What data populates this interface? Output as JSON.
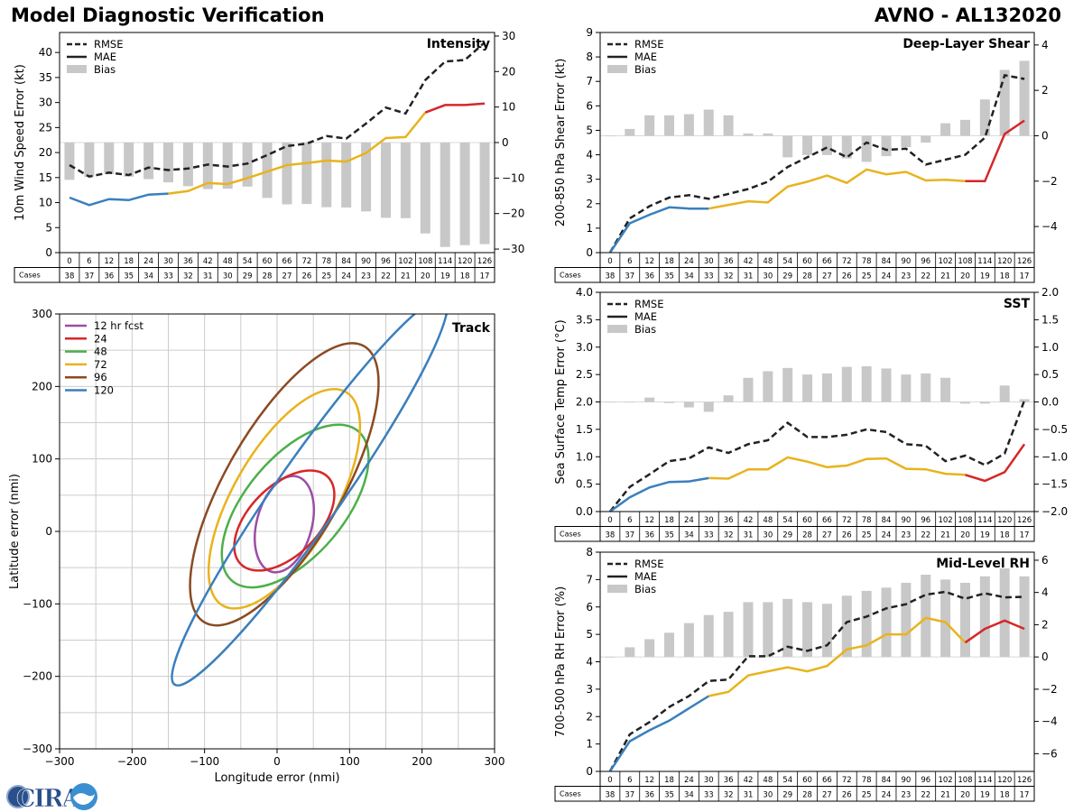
{
  "header": {
    "title": "Model Diagnostic Verification",
    "storm": "AVNO - AL132020"
  },
  "cases_label": "Cases",
  "hours": [
    0,
    6,
    12,
    18,
    24,
    30,
    36,
    42,
    48,
    54,
    60,
    66,
    72,
    78,
    84,
    90,
    96,
    102,
    108,
    114,
    120,
    126
  ],
  "cases": [
    38,
    37,
    36,
    35,
    34,
    33,
    32,
    31,
    30,
    29,
    28,
    27,
    26,
    25,
    24,
    23,
    22,
    21,
    20,
    19,
    18,
    17
  ],
  "legend_labels": {
    "rmse": "RMSE",
    "mae": "MAE",
    "bias": "Bias"
  },
  "colors": {
    "early": "#3a7fbd",
    "mid": "#e8b31d",
    "late": "#d62728",
    "rmse": "#222222",
    "bias": "#c8c8c8",
    "grid": "#cccccc"
  },
  "logo_text": "CIRA",
  "chart_data": [
    {
      "id": "intensity",
      "type": "line",
      "panel_title": "Intensity",
      "ylabel": "10m Wind Speed Error (kt)",
      "ylim": [
        0,
        44
      ],
      "yticks": [
        0,
        5,
        10,
        15,
        20,
        25,
        30,
        35,
        40
      ],
      "y2lim": [
        -31,
        31
      ],
      "y2ticks": [
        -30,
        -20,
        -10,
        0,
        10,
        20,
        30
      ],
      "rmse": [
        17.5,
        15.2,
        16,
        15.5,
        17,
        16.5,
        16.8,
        17.6,
        17.2,
        17.8,
        19.5,
        21.3,
        21.8,
        23.3,
        22.8,
        25.8,
        29,
        27.8,
        34.5,
        38.2,
        38.5,
        42
      ],
      "mae": [
        11,
        9.5,
        10.7,
        10.5,
        11.6,
        11.8,
        12.3,
        13.9,
        13.7,
        14.9,
        16.2,
        17.5,
        17.9,
        18.4,
        18.2,
        19.9,
        22.9,
        23.1,
        28,
        29.5,
        29.5,
        29.8
      ],
      "bias": [
        -10.5,
        -9.7,
        -8.9,
        -9.6,
        -10.3,
        -11.2,
        -12.3,
        -13.1,
        -13,
        -12.4,
        -15.6,
        -17.4,
        -17.3,
        -18.2,
        -18.3,
        -19.4,
        -21.2,
        -21.3,
        -25.6,
        -29.4,
        -28.9,
        -28.6
      ]
    },
    {
      "id": "shear",
      "type": "line",
      "panel_title": "Deep-Layer Shear",
      "ylabel": "200-850 hPa Shear Error (kt)",
      "ylim": [
        0,
        9
      ],
      "yticks": [
        0,
        1,
        2,
        3,
        4,
        5,
        6,
        7,
        8,
        9
      ],
      "y2lim": [
        -5.15,
        4.55
      ],
      "y2ticks": [
        -4,
        -2,
        0,
        2,
        4
      ],
      "rmse": [
        0,
        1.4,
        1.9,
        2.25,
        2.35,
        2.2,
        2.4,
        2.6,
        2.9,
        3.5,
        3.9,
        4.3,
        3.9,
        4.5,
        4.2,
        4.25,
        3.6,
        3.8,
        4,
        4.7,
        7.25,
        7.1
      ],
      "mae": [
        0,
        1.2,
        1.55,
        1.85,
        1.8,
        1.8,
        1.95,
        2.1,
        2.05,
        2.7,
        2.9,
        3.15,
        2.85,
        3.4,
        3.2,
        3.3,
        2.95,
        2.98,
        2.92,
        2.92,
        4.85,
        5.4
      ],
      "bias": [
        0,
        0.3,
        0.9,
        0.9,
        0.95,
        1.15,
        0.9,
        0.1,
        0.1,
        -0.95,
        -0.85,
        -0.85,
        -1,
        -1.15,
        -0.9,
        -0.5,
        -0.3,
        0.55,
        0.7,
        1.6,
        2.9,
        3.3
      ]
    },
    {
      "id": "sst",
      "type": "line",
      "panel_title": "SST",
      "ylabel": "Sea Surface Temp Error (°C)",
      "ylim": [
        0,
        4
      ],
      "yticks": [
        0,
        0.5,
        1,
        1.5,
        2,
        2.5,
        3,
        3.5,
        4
      ],
      "ytick_labels": [
        "0.0",
        "0.5",
        "1.0",
        "1.5",
        "2.0",
        "2.5",
        "3.0",
        "3.5",
        "4.0"
      ],
      "y2lim": [
        -2,
        2
      ],
      "y2ticks": [
        -2,
        -1.5,
        -1,
        -0.5,
        0,
        0.5,
        1,
        1.5,
        2
      ],
      "y2tick_labels": [
        "−2.0",
        "−1.5",
        "−1.0",
        "−0.5",
        "0.0",
        "0.5",
        "1.0",
        "1.5",
        "2.0"
      ],
      "rmse": [
        0,
        0.45,
        0.68,
        0.92,
        0.97,
        1.17,
        1.07,
        1.23,
        1.3,
        1.62,
        1.36,
        1.36,
        1.4,
        1.5,
        1.45,
        1.23,
        1.2,
        0.92,
        1.02,
        0.85,
        1.06,
        2.03
      ],
      "mae": [
        0,
        0.26,
        0.44,
        0.54,
        0.55,
        0.61,
        0.6,
        0.77,
        0.77,
        0.99,
        0.91,
        0.81,
        0.84,
        0.96,
        0.97,
        0.78,
        0.77,
        0.69,
        0.67,
        0.56,
        0.72,
        1.23
      ],
      "bias": [
        0,
        0,
        0.08,
        -0.02,
        -0.1,
        -0.18,
        0.12,
        0.44,
        0.56,
        0.62,
        0.5,
        0.52,
        0.64,
        0.65,
        0.61,
        0.5,
        0.52,
        0.44,
        -0.03,
        -0.03,
        0.3,
        0.05
      ]
    },
    {
      "id": "rh",
      "type": "line",
      "panel_title": "Mid-Level RH",
      "ylabel": "700-500 hPa RH Error (%)",
      "ylim": [
        0,
        8
      ],
      "yticks": [
        0,
        1,
        2,
        3,
        4,
        5,
        6,
        7,
        8
      ],
      "y2lim": [
        -7.1,
        6.5
      ],
      "y2ticks": [
        -6,
        -4,
        -2,
        0,
        2,
        4,
        6
      ],
      "rmse": [
        0,
        1.35,
        1.8,
        2.35,
        2.75,
        3.3,
        3.35,
        4.2,
        4.2,
        4.55,
        4.4,
        4.6,
        5.45,
        5.65,
        5.95,
        6.1,
        6.45,
        6.55,
        6.3,
        6.5,
        6.35,
        6.37
      ],
      "mae": [
        0,
        1.1,
        1.5,
        1.85,
        2.3,
        2.75,
        2.9,
        3.5,
        3.65,
        3.8,
        3.65,
        3.85,
        4.45,
        4.6,
        5,
        5,
        5.6,
        5.45,
        4.7,
        5.2,
        5.5,
        5.2
      ],
      "bias": [
        0,
        0.6,
        1.1,
        1.5,
        2.1,
        2.6,
        2.8,
        3.4,
        3.4,
        3.6,
        3.4,
        3.3,
        3.8,
        4.1,
        4.3,
        4.6,
        5.1,
        4.8,
        4.6,
        5,
        5.5,
        5
      ]
    },
    {
      "id": "track",
      "type": "scatter",
      "panel_title": "Track",
      "xlabel": "Longitude error (nmi)",
      "ylabel": "Latitude error (nmi)",
      "xlim": [
        -300,
        300
      ],
      "ylim": [
        -300,
        300
      ],
      "ticks": [
        -300,
        -200,
        -100,
        0,
        100,
        200,
        300
      ],
      "tick_labels": [
        "−300",
        "−200",
        "−100",
        "0",
        "100",
        "200",
        "300"
      ],
      "grid_step": 50,
      "ellipses": [
        {
          "label": "12 hr fcst",
          "color": "#9b4da6",
          "cx": 10,
          "cy": 10,
          "a": 68,
          "b": 38,
          "angle_deg": 75
        },
        {
          "label": "24",
          "color": "#d62728",
          "cx": 10,
          "cy": 15,
          "a": 85,
          "b": 48,
          "angle_deg": 45
        },
        {
          "label": "48",
          "color": "#4daf4a",
          "cx": 25,
          "cy": 35,
          "a": 135,
          "b": 68,
          "angle_deg": 50
        },
        {
          "label": "72",
          "color": "#e8b31d",
          "cx": 10,
          "cy": 45,
          "a": 170,
          "b": 70,
          "angle_deg": 60
        },
        {
          "label": "96",
          "color": "#8b4a22",
          "cx": 10,
          "cy": 65,
          "a": 220,
          "b": 80,
          "angle_deg": 60
        },
        {
          "label": "120",
          "color": "#3a7fbd",
          "cx": 45,
          "cy": 55,
          "a": 325,
          "b": 45,
          "angle_deg": 55
        }
      ]
    }
  ]
}
